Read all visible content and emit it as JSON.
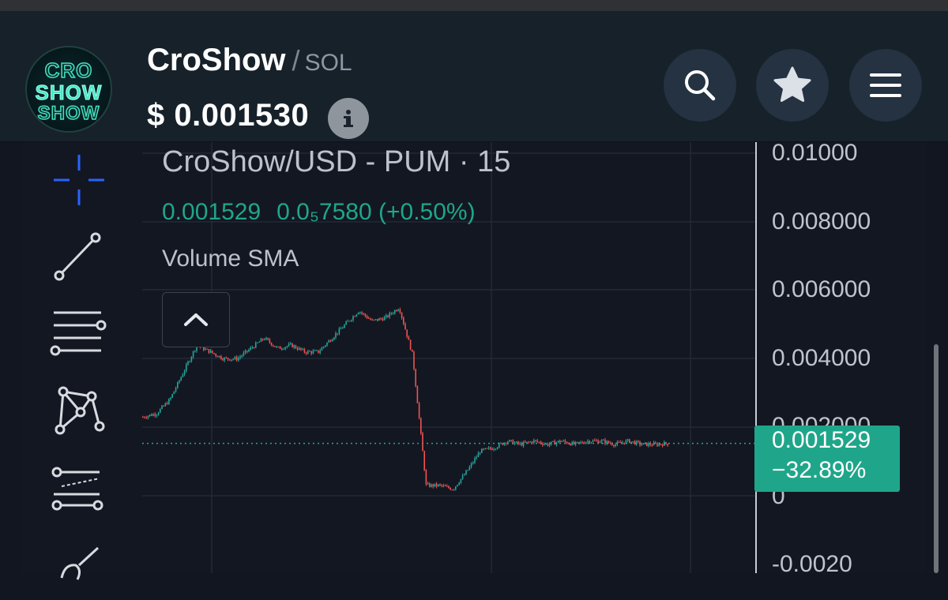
{
  "header": {
    "logo_text": [
      "CRO",
      "SHOW",
      "SHOW"
    ],
    "token_name": "CroShow",
    "separator": "/",
    "pair_quote": "SOL",
    "price": "$ 0.001530"
  },
  "header_buttons": {
    "search_icon": "search-icon",
    "favorite_icon": "star-icon",
    "menu_icon": "hamburger-icon"
  },
  "toolbar": {
    "tools": [
      "crosshair-icon",
      "trend-line-icon",
      "horizontal-lines-icon",
      "pattern-icon",
      "fib-tool-icon",
      "brush-icon"
    ]
  },
  "legend": {
    "symbol": "CroShow/USD - PUM · 15",
    "last_value": "0.001529",
    "change": "0.0₅7580 (+0.50%)",
    "indicator": "Volume SMA"
  },
  "price_axis": {
    "labels": [
      "0.01000",
      "0.008000",
      "0.006000",
      "0.004000",
      "0.002000",
      "0",
      "-0.0020"
    ]
  },
  "current_price": {
    "price": "0.001529",
    "change": "−32.89%"
  },
  "colors": {
    "up": "#26a69a",
    "down": "#ef5350",
    "badge": "#1fa68a",
    "background": "#131722",
    "header": "#17212a"
  },
  "chart_data": {
    "type": "line",
    "ylim": [
      -0.002,
      0.011
    ],
    "series": [
      {
        "x": [
          0,
          4,
          8,
          12,
          16,
          20,
          24,
          28,
          32,
          36,
          40,
          44,
          48,
          52,
          56,
          60,
          64,
          68,
          72,
          76,
          80,
          84,
          88,
          92,
          96,
          100
        ],
        "values": [
          0.0023,
          0.0024,
          0.0028,
          0.0036,
          0.0044,
          0.0042,
          0.004,
          0.004,
          0.0043,
          0.0046,
          0.0043,
          0.0044,
          0.0042,
          0.0042,
          0.0046,
          0.005,
          0.0054,
          0.0051,
          0.0052,
          0.0055,
          0.0041,
          0.0003,
          0.0003,
          0.0002,
          0.0007,
          0.0013
        ]
      },
      {
        "x": [
          100,
          104,
          108,
          112,
          116,
          120,
          124,
          128,
          132,
          136,
          140,
          144,
          148,
          152,
          156
        ],
        "values": [
          0.0013,
          0.0014,
          0.0016,
          0.0015,
          0.0016,
          0.0015,
          0.0016,
          0.0015,
          0.0016,
          0.0016,
          0.0015,
          0.0016,
          0.0015,
          0.0015,
          0.001529
        ]
      }
    ],
    "current_value": 0.001529,
    "percent_change": "−32.89%"
  }
}
